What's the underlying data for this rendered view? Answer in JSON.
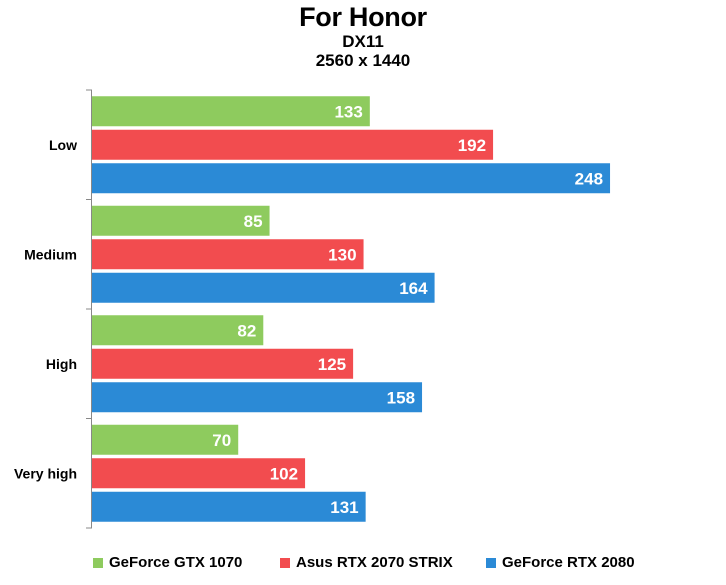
{
  "chart_data": {
    "type": "bar",
    "orientation": "horizontal",
    "title": "For Honor",
    "subtitle_lines": [
      "DX11",
      "2560 x 1440"
    ],
    "categories": [
      "Low",
      "Medium",
      "High",
      "Very high"
    ],
    "series": [
      {
        "name": "GeForce GTX 1070",
        "color": "#8ecb5e",
        "values": [
          133,
          85,
          82,
          70
        ]
      },
      {
        "name": "Asus RTX 2070 STRIX",
        "color": "#f24c4f",
        "values": [
          192,
          130,
          125,
          102
        ]
      },
      {
        "name": "GeForce RTX 2080",
        "color": "#2b8ad6",
        "values": [
          248,
          164,
          158,
          131
        ]
      }
    ],
    "xlim": [
      0,
      270
    ],
    "grid": false,
    "data_labels": true,
    "legend_position": "bottom"
  }
}
